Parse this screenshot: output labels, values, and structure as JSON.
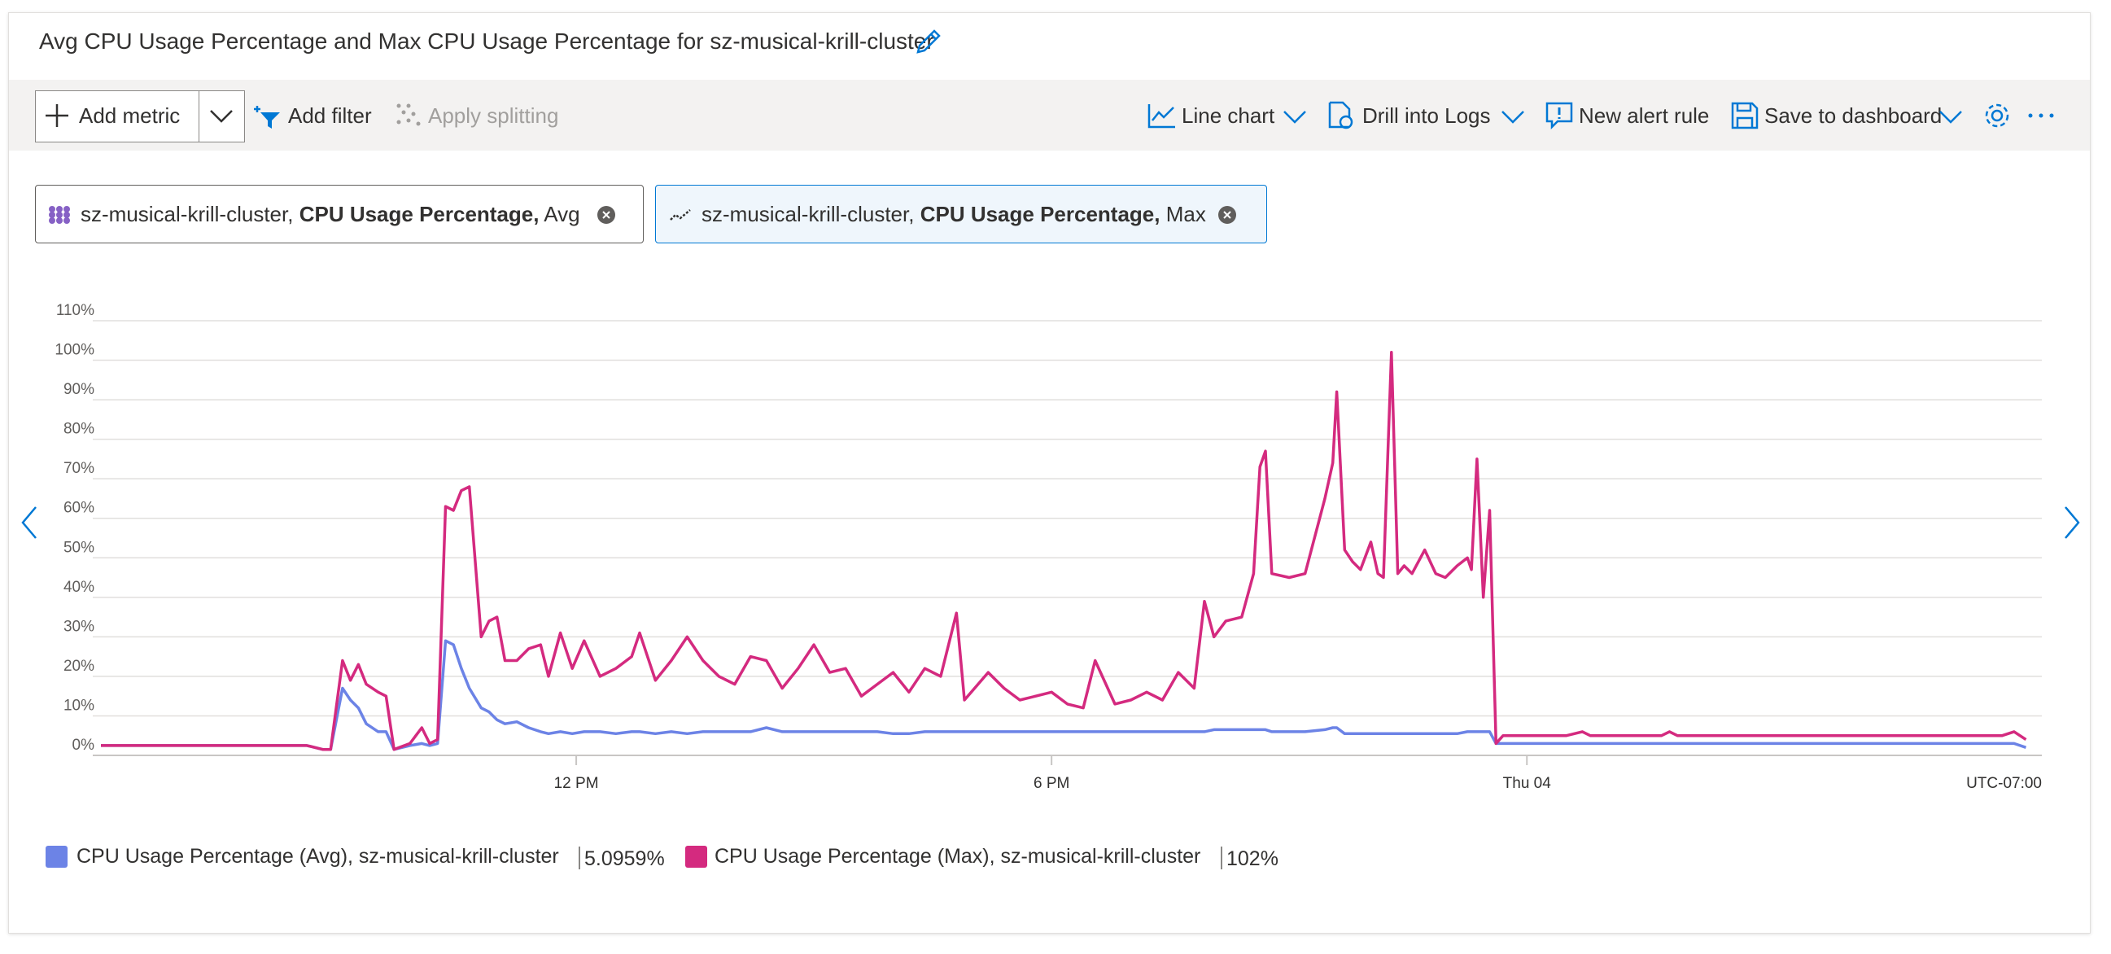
{
  "header": {
    "title": "Avg CPU Usage Percentage and Max CPU Usage Percentage for sz-musical-krill-cluster"
  },
  "toolbar": {
    "add_metric": "Add metric",
    "add_filter": "Add filter",
    "apply_splitting": "Apply splitting",
    "line_chart": "Line chart",
    "drill_into_logs": "Drill into Logs",
    "new_alert_rule": "New alert rule",
    "save_to_dashboard": "Save to dashboard"
  },
  "metric_pills": [
    {
      "resource": "sz-musical-krill-cluster,",
      "metric": "CPU Usage Percentage,",
      "aggregation": "Avg"
    },
    {
      "resource": "sz-musical-krill-cluster,",
      "metric": "CPU Usage Percentage,",
      "aggregation": "Max"
    }
  ],
  "chart_data": {
    "type": "line",
    "x": [
      6,
      7,
      8,
      8.6,
      8.8,
      8.9,
      9.05,
      9.15,
      9.25,
      9.35,
      9.5,
      9.6,
      9.7,
      9.9,
      10.05,
      10.15,
      10.25,
      10.35,
      10.45,
      10.55,
      10.65,
      10.8,
      10.9,
      11.0,
      11.1,
      11.25,
      11.4,
      11.55,
      11.65,
      11.8,
      11.95,
      12.1,
      12.3,
      12.5,
      12.7,
      12.8,
      13.0,
      13.2,
      13.4,
      13.6,
      13.8,
      14.0,
      14.2,
      14.4,
      14.6,
      14.8,
      15.0,
      15.2,
      15.4,
      15.6,
      15.8,
      16.0,
      16.2,
      16.4,
      16.6,
      16.8,
      16.9,
      17.2,
      17.4,
      17.6,
      17.8,
      18.0,
      18.2,
      18.4,
      18.55,
      18.8,
      19.0,
      19.2,
      19.4,
      19.6,
      19.8,
      19.93,
      20.05,
      20.2,
      20.4,
      20.55,
      20.63,
      20.7,
      20.78,
      21.0,
      21.2,
      21.45,
      21.55,
      21.6,
      21.7,
      21.8,
      21.9,
      22.03,
      22.12,
      22.19,
      22.29,
      22.37,
      22.45,
      22.55,
      22.71,
      22.85,
      22.97,
      23.12,
      23.25,
      23.3,
      23.37,
      23.45,
      23.53,
      23.61,
      23.7,
      24.5,
      24.7,
      24.8,
      25.7,
      25.8,
      25.9,
      28,
      30.0,
      30.15,
      30.3
    ],
    "series": [
      {
        "name": "CPU Usage Percentage (Avg), sz-musical-krill-cluster",
        "summary": "5.0959%",
        "color": "#6c83e6",
        "values": [
          2.5,
          2.5,
          2.5,
          2.5,
          1.5,
          1.5,
          17,
          14,
          12,
          8,
          6,
          6,
          1.5,
          2.5,
          3,
          2.5,
          3,
          29,
          28,
          22,
          17,
          12,
          11,
          9,
          8,
          8.5,
          7,
          6,
          5.5,
          6,
          5.5,
          6,
          6,
          5.5,
          6,
          6,
          5.5,
          6,
          5.5,
          6,
          6,
          6,
          6,
          7,
          6,
          6,
          6,
          6,
          6,
          6,
          6,
          5.5,
          5.5,
          6,
          6,
          6,
          6,
          6,
          6,
          6,
          6,
          6,
          6,
          6,
          6,
          6,
          6,
          6,
          6,
          6,
          6,
          6,
          6.5,
          6.5,
          6.5,
          6.5,
          6.5,
          6.5,
          6,
          6,
          6,
          6.5,
          7,
          7,
          5.5,
          5.5,
          5.5,
          5.5,
          5.5,
          5.5,
          5.5,
          5.5,
          5.5,
          5.5,
          5.5,
          5.5,
          5.5,
          5.5,
          6,
          6,
          6,
          6,
          6,
          3,
          3,
          3,
          3,
          3,
          3,
          3,
          3,
          3,
          3,
          3,
          2
        ]
      },
      {
        "name": "CPU Usage Percentage (Max), sz-musical-krill-cluster",
        "summary": "102%",
        "color": "#d42a7f",
        "values": [
          2.5,
          2.5,
          2.5,
          2.5,
          1.5,
          1.5,
          24,
          19,
          23,
          18,
          16,
          15,
          1.5,
          3,
          7,
          3,
          4,
          63,
          62,
          67,
          68,
          30,
          34,
          35,
          24,
          24,
          27,
          28,
          20,
          31,
          22,
          29,
          20,
          22,
          25,
          31,
          19,
          24,
          30,
          24,
          20,
          18,
          25,
          24,
          17,
          22,
          28,
          21,
          22,
          15,
          18,
          21,
          16,
          22,
          20,
          36,
          14,
          21,
          17,
          14,
          15,
          16,
          13,
          12,
          24,
          13,
          14,
          16,
          14,
          21,
          17,
          39,
          30,
          34,
          35,
          46,
          73,
          77,
          46,
          45,
          46,
          65,
          74,
          92,
          52,
          49,
          47,
          54,
          46,
          45,
          102,
          46,
          48,
          46,
          52,
          46,
          45,
          48,
          50,
          47,
          75,
          40,
          62,
          3,
          5,
          5,
          6,
          5,
          5,
          6,
          5,
          5,
          5,
          6,
          4
        ]
      }
    ],
    "xlim": [
      6,
      30.5
    ],
    "xticks": [
      {
        "value": 12,
        "label": "12 PM"
      },
      {
        "value": 18,
        "label": "6 PM"
      },
      {
        "value": 24,
        "label": "Thu 04"
      }
    ],
    "timezone": "UTC-07:00",
    "ylim": [
      0,
      110
    ],
    "yticks": [
      {
        "value": 0,
        "label": "0%"
      },
      {
        "value": 10,
        "label": "10%"
      },
      {
        "value": 20,
        "label": "20%"
      },
      {
        "value": 30,
        "label": "30%"
      },
      {
        "value": 40,
        "label": "40%"
      },
      {
        "value": 50,
        "label": "50%"
      },
      {
        "value": 60,
        "label": "60%"
      },
      {
        "value": 70,
        "label": "70%"
      },
      {
        "value": 80,
        "label": "80%"
      },
      {
        "value": 90,
        "label": "90%"
      },
      {
        "value": 100,
        "label": "100%"
      },
      {
        "value": 110,
        "label": "110%"
      }
    ],
    "grid": true
  }
}
